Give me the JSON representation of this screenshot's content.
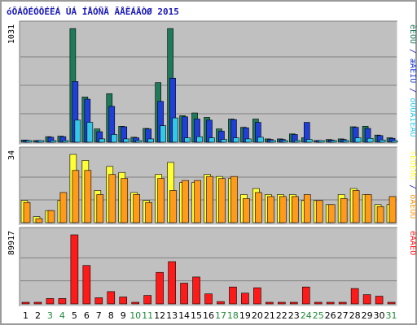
{
  "title": "óÔÁÔÉÓÔÉËÁ ÚÁ ÍÅÓÑÃ ÄÅËÁÂÒØ 2015",
  "colors": {
    "panel_bg": "#c0c0c0",
    "grid": "#808080",
    "title": "#1a1ab8",
    "hits": "#1f7a5a",
    "files": "#1f3fd8",
    "pages": "#33c8e8",
    "visits": "#ffff33",
    "sites": "#ff9a1a",
    "kbytes": "#ff1a1a",
    "weekend_label": "#1f8a3a",
    "weekday_label": "#000000"
  },
  "chart_data": [
    {
      "type": "bar",
      "panel": "top",
      "ymax_label": "1031",
      "ylim": [
        0,
        1031
      ],
      "categories": [
        "1",
        "2",
        "3",
        "4",
        "5",
        "6",
        "7",
        "8",
        "9",
        "10",
        "11",
        "12",
        "13",
        "14",
        "15",
        "16",
        "17",
        "18",
        "19",
        "20",
        "21",
        "22",
        "23",
        "24",
        "25",
        "26",
        "27",
        "28",
        "29",
        "30",
        "31"
      ],
      "series": [
        {
          "name": "èÉÔÙ",
          "color_key": "hits",
          "values": [
            20,
            15,
            50,
            55,
            1030,
            410,
            120,
            440,
            145,
            45,
            125,
            540,
            1030,
            240,
            265,
            225,
            120,
            210,
            135,
            210,
            30,
            30,
            75,
            40,
            15,
            25,
            30,
            140,
            145,
            65,
            40
          ]
        },
        {
          "name": "æÁÊÌÙ",
          "color_key": "files",
          "values": [
            18,
            12,
            45,
            50,
            550,
            390,
            95,
            325,
            140,
            40,
            120,
            370,
            580,
            230,
            210,
            200,
            100,
            205,
            130,
            180,
            25,
            25,
            70,
            180,
            12,
            20,
            25,
            135,
            125,
            60,
            35
          ]
        },
        {
          "name": "óÔÒÁÎÉÃÙ",
          "color_key": "pages",
          "values": [
            10,
            6,
            12,
            12,
            200,
            180,
            30,
            70,
            30,
            12,
            30,
            150,
            220,
            40,
            50,
            40,
            25,
            40,
            30,
            45,
            10,
            10,
            15,
            25,
            5,
            8,
            10,
            40,
            35,
            20,
            10
          ]
        }
      ],
      "right_label": "èÉÔÙ / æÁÊÌÙ / óÔÒÁÎÉÃÙ"
    },
    {
      "type": "bar",
      "panel": "middle",
      "ymax_label": "34",
      "ylim": [
        0,
        34
      ],
      "categories": [
        "1",
        "2",
        "3",
        "4",
        "5",
        "6",
        "7",
        "8",
        "9",
        "10",
        "11",
        "12",
        "13",
        "14",
        "15",
        "16",
        "17",
        "18",
        "19",
        "20",
        "21",
        "22",
        "23",
        "24",
        "25",
        "26",
        "27",
        "28",
        "29",
        "30",
        "31"
      ],
      "series": [
        {
          "name": "÷ÉÚÉÔÙ",
          "color_key": "visits",
          "values": [
            11,
            3,
            6,
            11,
            34,
            31,
            16,
            28,
            25,
            15,
            11,
            24,
            30,
            20,
            20,
            24,
            23,
            22,
            14,
            17,
            14,
            14,
            14,
            11,
            11,
            9,
            14,
            17,
            14,
            9,
            9
          ]
        },
        {
          "name": "óÁÊÔÙ",
          "color_key": "sites",
          "values": [
            10,
            2,
            6,
            15,
            26,
            26,
            14,
            24,
            22,
            14,
            10,
            22,
            16,
            21,
            21,
            23,
            22,
            23,
            12,
            15,
            13,
            13,
            13,
            14,
            11,
            9,
            12,
            16,
            14,
            8,
            13
          ]
        }
      ],
      "right_label": "÷ÉÚÉÔÙ / óÁÊÔÙ"
    },
    {
      "type": "bar",
      "panel": "bottom",
      "ymax_label": "89917",
      "ylim": [
        0,
        89917
      ],
      "categories": [
        "1",
        "2",
        "3",
        "4",
        "5",
        "6",
        "7",
        "8",
        "9",
        "10",
        "11",
        "12",
        "13",
        "14",
        "15",
        "16",
        "17",
        "18",
        "19",
        "20",
        "21",
        "22",
        "23",
        "24",
        "25",
        "26",
        "27",
        "28",
        "29",
        "30",
        "31"
      ],
      "series": [
        {
          "name": "ëÂÁÊÔ",
          "color_key": "kbytes",
          "values": [
            1000,
            1000,
            7000,
            7000,
            89917,
            50000,
            8000,
            16000,
            9000,
            1000,
            11000,
            41000,
            55000,
            27000,
            35000,
            13000,
            3000,
            22000,
            14000,
            21000,
            1000,
            1000,
            1000,
            22000,
            1000,
            1000,
            1000,
            20000,
            12000,
            10000,
            1000
          ]
        }
      ],
      "right_label": "ëÂÁÊÔ"
    }
  ],
  "x_labels": [
    {
      "text": "1",
      "weekend": false
    },
    {
      "text": "2",
      "weekend": false
    },
    {
      "text": "3",
      "weekend": true
    },
    {
      "text": "4",
      "weekend": true
    },
    {
      "text": "5",
      "weekend": false
    },
    {
      "text": "6",
      "weekend": false
    },
    {
      "text": "7",
      "weekend": false
    },
    {
      "text": "8",
      "weekend": false
    },
    {
      "text": "9",
      "weekend": false
    },
    {
      "text": "10",
      "weekend": true
    },
    {
      "text": "11",
      "weekend": true
    },
    {
      "text": "12",
      "weekend": false
    },
    {
      "text": "13",
      "weekend": false
    },
    {
      "text": "14",
      "weekend": false
    },
    {
      "text": "15",
      "weekend": false
    },
    {
      "text": "16",
      "weekend": false
    },
    {
      "text": "17",
      "weekend": true
    },
    {
      "text": "18",
      "weekend": true
    },
    {
      "text": "19",
      "weekend": false
    },
    {
      "text": "20",
      "weekend": false
    },
    {
      "text": "21",
      "weekend": false
    },
    {
      "text": "22",
      "weekend": false
    },
    {
      "text": "23",
      "weekend": false
    },
    {
      "text": "24",
      "weekend": true
    },
    {
      "text": "25",
      "weekend": true
    },
    {
      "text": "26",
      "weekend": false
    },
    {
      "text": "27",
      "weekend": false
    },
    {
      "text": "28",
      "weekend": false
    },
    {
      "text": "29",
      "weekend": false
    },
    {
      "text": "30",
      "weekend": false
    },
    {
      "text": "31",
      "weekend": true
    }
  ]
}
